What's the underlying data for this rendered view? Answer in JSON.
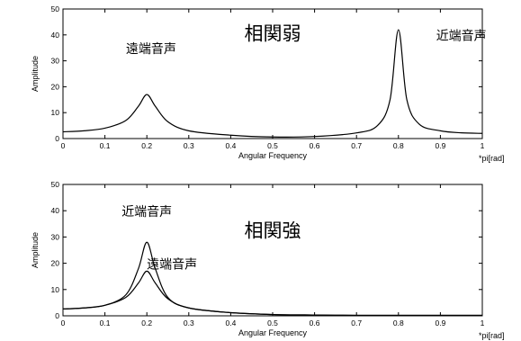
{
  "chart_data": [
    {
      "type": "line",
      "xlabel": "Angular Frequency",
      "ylabel": "Amplitude",
      "x_unit": "*pi[rad]",
      "xlim": [
        0,
        1
      ],
      "ylim": [
        0,
        50
      ],
      "xticks": [
        0,
        0.1,
        0.2,
        0.3,
        0.4,
        0.5,
        0.6,
        0.7,
        0.8,
        0.9,
        1
      ],
      "yticks": [
        0,
        10,
        20,
        30,
        40,
        50
      ],
      "annotations": [
        {
          "text": "遠端音声",
          "x": 0.21,
          "y": 33
        },
        {
          "text": "相関弱",
          "x": 0.5,
          "y": 38
        },
        {
          "text": "近端音声",
          "x": 0.95,
          "y": 38
        }
      ],
      "series": [
        {
          "peaks": [
            {
              "x": 0.2,
              "y": 17
            },
            {
              "x": 0.8,
              "y": 42
            }
          ],
          "baseline_y": 2.5,
          "x": [
            0,
            0.05,
            0.1,
            0.15,
            0.18,
            0.2,
            0.22,
            0.25,
            0.3,
            0.4,
            0.5,
            0.6,
            0.7,
            0.75,
            0.78,
            0.8,
            0.82,
            0.85,
            0.9,
            0.95,
            1
          ],
          "y": [
            2.6,
            3.0,
            4.0,
            7.0,
            12.5,
            17.0,
            12.5,
            6.5,
            3.0,
            1.3,
            0.6,
            0.8,
            2.2,
            5.0,
            15.0,
            42.0,
            15.0,
            5.5,
            3.0,
            2.2,
            2.0
          ]
        }
      ]
    },
    {
      "type": "line",
      "xlabel": "Angular Frequency",
      "ylabel": "Amplitude",
      "x_unit": "*pi[rad]",
      "xlim": [
        0,
        1
      ],
      "ylim": [
        0,
        50
      ],
      "xticks": [
        0,
        0.1,
        0.2,
        0.3,
        0.4,
        0.5,
        0.6,
        0.7,
        0.8,
        0.9,
        1
      ],
      "yticks": [
        0,
        10,
        20,
        30,
        40,
        50
      ],
      "annotations": [
        {
          "text": "近端音声",
          "x": 0.2,
          "y": 38
        },
        {
          "text": "相関強",
          "x": 0.5,
          "y": 30
        },
        {
          "text": "遠端音声",
          "x": 0.26,
          "y": 18
        }
      ],
      "series": [
        {
          "peaks": [
            {
              "x": 0.2,
              "y": 28
            }
          ],
          "x": [
            0,
            0.05,
            0.1,
            0.15,
            0.18,
            0.2,
            0.22,
            0.25,
            0.3,
            0.4,
            0.5,
            0.6,
            0.7,
            0.8,
            0.9,
            1
          ],
          "y": [
            2.6,
            3.0,
            4.0,
            8.0,
            18.0,
            28.0,
            18.0,
            7.0,
            3.0,
            1.2,
            0.5,
            0.3,
            0.2,
            0.2,
            0.2,
            0.2
          ]
        },
        {
          "peaks": [
            {
              "x": 0.2,
              "y": 17
            }
          ],
          "x": [
            0,
            0.05,
            0.1,
            0.15,
            0.18,
            0.2,
            0.22,
            0.25,
            0.3,
            0.4,
            0.5,
            0.6,
            0.7,
            0.8,
            0.9,
            1
          ],
          "y": [
            2.6,
            3.0,
            4.0,
            7.0,
            12.5,
            17.0,
            12.5,
            6.5,
            3.0,
            1.2,
            0.5,
            0.3,
            0.2,
            0.2,
            0.2,
            0.2
          ]
        }
      ]
    }
  ]
}
